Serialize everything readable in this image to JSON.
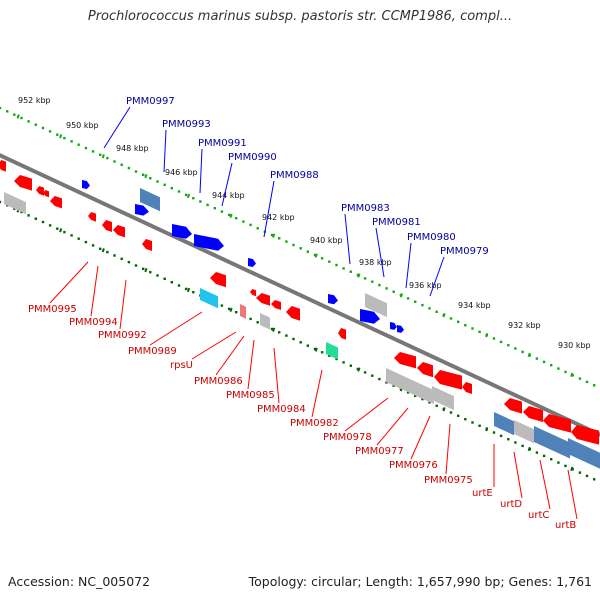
{
  "title": "Prochlorococcus marinus subsp. pastoris str. CCMP1986, compl...",
  "footer": {
    "accession": "Accession: NC_005072",
    "topology": "Topology: circular; Length: 1,657,990 bp; Genes: 1,761"
  },
  "colors": {
    "forward_gene": "#0000ff",
    "reverse_gene": "#ff0000",
    "forward_label": "#000099",
    "reverse_label": "#cc0000",
    "backbone": "#777777",
    "forward_tick": "#11aa11",
    "reverse_tick": "#006600",
    "grey_feature": "#bbbbbb",
    "steelblue_feature": "#4f82b8",
    "cyan_feature": "#22c4ee",
    "green_feature": "#22dd99",
    "pink_feature": "#ee7777"
  },
  "kbp_labels": [
    "952 kbp",
    "950 kbp",
    "948 kbp",
    "946 kbp",
    "944 kbp",
    "942 kbp",
    "940 kbp",
    "938 kbp",
    "936 kbp",
    "934 kbp",
    "932 kbp",
    "930 kbp"
  ],
  "forward_labels": [
    "PMM0997",
    "PMM0993",
    "PMM0991",
    "PMM0990",
    "PMM0988",
    "PMM0983",
    "PMM0981",
    "PMM0980",
    "PMM0979"
  ],
  "reverse_labels": [
    "PMM0995",
    "PMM0994",
    "PMM0992",
    "PMM0989",
    "rpsU",
    "PMM0986",
    "PMM0985",
    "PMM0984",
    "PMM0982",
    "PMM0978",
    "PMM0977",
    "PMM0976",
    "PMM0975",
    "urtE",
    "urtD",
    "urtC",
    "urtB"
  ]
}
